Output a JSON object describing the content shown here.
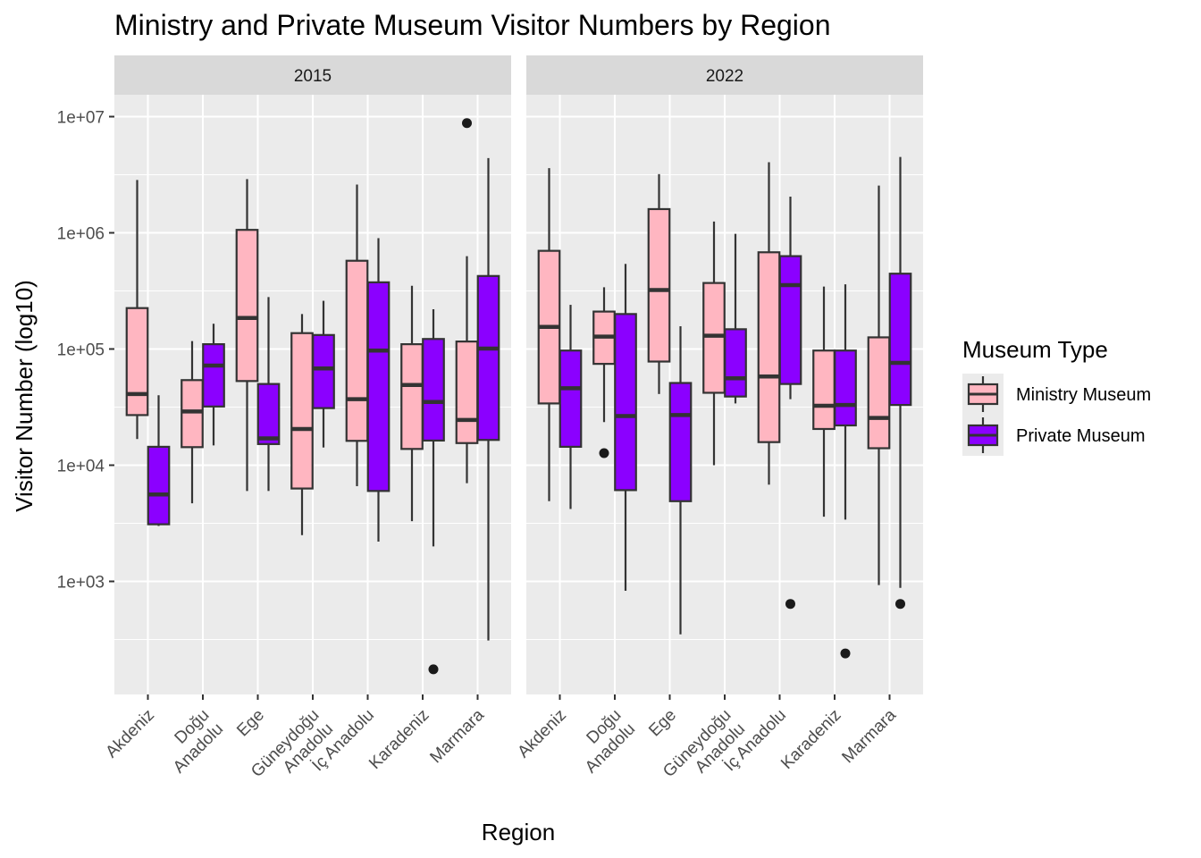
{
  "chart_data": {
    "type": "boxplot",
    "title": "Ministry and Private Museum Visitor Numbers by Region",
    "xlabel": "Region",
    "ylabel": "Visitor Number (log10)",
    "y_scale": "log10",
    "y_range": [
      100,
      20000000
    ],
    "y_ticks": [
      1000,
      10000,
      100000,
      1000000,
      10000000
    ],
    "y_tick_labels": [
      "1e+03",
      "1e+04",
      "1e+05",
      "1e+06",
      "1e+07"
    ],
    "facets": [
      "2015",
      "2022"
    ],
    "categories": [
      "Akdeniz",
      "Doğu Anadolu",
      "Ege",
      "Güneydoğu Anadolu",
      "İç Anadolu",
      "Karadeniz",
      "Marmara"
    ],
    "category_labels": [
      [
        "Akdeniz"
      ],
      [
        "Doğu",
        "Anadolu"
      ],
      [
        "Ege"
      ],
      [
        "Güneydoğu",
        "Anadolu"
      ],
      [
        "İç Anadolu"
      ],
      [
        "Karadeniz"
      ],
      [
        "Marmara"
      ]
    ],
    "legend": {
      "title": "Museum Type",
      "position": "right",
      "entries": [
        {
          "name": "Ministry Museum",
          "color": "#FFB6C1"
        },
        {
          "name": "Private Museum",
          "color": "#8B00FF"
        }
      ]
    },
    "grid": true,
    "panels": [
      {
        "facet": "2015",
        "series": [
          {
            "name": "Ministry Museum",
            "boxes": [
              {
                "category": "Akdeniz",
                "min": 16800,
                "q1": 27000,
                "median": 41000,
                "q3": 225000,
                "max": 2850000,
                "outliers": []
              },
              {
                "category": "Doğu Anadolu",
                "min": 4700,
                "q1": 14300,
                "median": 29000,
                "q3": 54000,
                "max": 117000,
                "outliers": []
              },
              {
                "category": "Ege",
                "min": 6000,
                "q1": 53000,
                "median": 185000,
                "q3": 1060000,
                "max": 2900000,
                "outliers": []
              },
              {
                "category": "Güneydoğu Anadolu",
                "min": 2500,
                "q1": 6300,
                "median": 20500,
                "q3": 137000,
                "max": 200000,
                "outliers": []
              },
              {
                "category": "İç Anadolu",
                "min": 6600,
                "q1": 16200,
                "median": 37000,
                "q3": 575000,
                "max": 2600000,
                "outliers": []
              },
              {
                "category": "Karadeniz",
                "min": 3300,
                "q1": 13800,
                "median": 49000,
                "q3": 110000,
                "max": 350000,
                "outliers": []
              },
              {
                "category": "Marmara",
                "min": 7000,
                "q1": 15500,
                "median": 24500,
                "q3": 116000,
                "max": 630000,
                "outliers": [
                  8800000
                ]
              }
            ]
          },
          {
            "name": "Private Museum",
            "boxes": [
              {
                "category": "Akdeniz",
                "min": 3000,
                "q1": 3100,
                "median": 5600,
                "q3": 14400,
                "max": 40000,
                "outliers": []
              },
              {
                "category": "Doğu Anadolu",
                "min": 14800,
                "q1": 32000,
                "median": 72000,
                "q3": 110000,
                "max": 165000,
                "outliers": []
              },
              {
                "category": "Ege",
                "min": 6000,
                "q1": 15200,
                "median": 17000,
                "q3": 50000,
                "max": 280000,
                "outliers": []
              },
              {
                "category": "Güneydoğu Anadolu",
                "min": 14200,
                "q1": 31000,
                "median": 68000,
                "q3": 132000,
                "max": 260000,
                "outliers": []
              },
              {
                "category": "İç Anadolu",
                "min": 2200,
                "q1": 6000,
                "median": 97000,
                "q3": 375000,
                "max": 900000,
                "outliers": []
              },
              {
                "category": "Karadeniz",
                "min": 2000,
                "q1": 16300,
                "median": 35000,
                "q3": 122000,
                "max": 220000,
                "outliers": [
                  175
                ]
              },
              {
                "category": "Marmara",
                "min": 310,
                "q1": 16500,
                "median": 101000,
                "q3": 425000,
                "max": 4400000,
                "outliers": []
              }
            ]
          }
        ]
      },
      {
        "facet": "2022",
        "series": [
          {
            "name": "Ministry Museum",
            "boxes": [
              {
                "category": "Akdeniz",
                "min": 4900,
                "q1": 34000,
                "median": 155000,
                "q3": 700000,
                "max": 3600000,
                "outliers": []
              },
              {
                "category": "Doğu Anadolu",
                "min": 23500,
                "q1": 74500,
                "median": 128000,
                "q3": 210000,
                "max": 340000,
                "outliers": [
                  12700
                ]
              },
              {
                "category": "Ege",
                "min": 41000,
                "q1": 78000,
                "median": 322000,
                "q3": 1600000,
                "max": 3200000,
                "outliers": []
              },
              {
                "category": "Güneydoğu Anadolu",
                "min": 10000,
                "q1": 42000,
                "median": 130000,
                "q3": 370000,
                "max": 1250000,
                "outliers": []
              },
              {
                "category": "İç Anadolu",
                "min": 6800,
                "q1": 15800,
                "median": 58000,
                "q3": 680000,
                "max": 4050000,
                "outliers": []
              },
              {
                "category": "Karadeniz",
                "min": 3600,
                "q1": 20500,
                "median": 32500,
                "q3": 97000,
                "max": 345000,
                "outliers": []
              },
              {
                "category": "Marmara",
                "min": 930,
                "q1": 14000,
                "median": 25500,
                "q3": 126000,
                "max": 2550000,
                "outliers": []
              }
            ]
          },
          {
            "name": "Private Museum",
            "boxes": [
              {
                "category": "Akdeniz",
                "min": 4200,
                "q1": 14400,
                "median": 46000,
                "q3": 97000,
                "max": 240000,
                "outliers": []
              },
              {
                "category": "Doğu Anadolu",
                "min": 830,
                "q1": 6100,
                "median": 26500,
                "q3": 200000,
                "max": 540000,
                "outliers": []
              },
              {
                "category": "Ege",
                "min": 350,
                "q1": 4900,
                "median": 27000,
                "q3": 51000,
                "max": 157000,
                "outliers": []
              },
              {
                "category": "Güneydoğu Anadolu",
                "min": 34000,
                "q1": 39000,
                "median": 56000,
                "q3": 148000,
                "max": 980000,
                "outliers": []
              },
              {
                "category": "İç Anadolu",
                "min": 37000,
                "q1": 50000,
                "median": 355000,
                "q3": 630000,
                "max": 2050000,
                "outliers": [
                  640
                ]
              },
              {
                "category": "Karadeniz",
                "min": 3400,
                "q1": 22000,
                "median": 33000,
                "q3": 97000,
                "max": 360000,
                "outliers": [
                  240
                ]
              },
              {
                "category": "Marmara",
                "min": 880,
                "q1": 33000,
                "median": 76000,
                "q3": 445000,
                "max": 4500000,
                "outliers": [
                  640
                ]
              }
            ]
          }
        ]
      }
    ]
  }
}
